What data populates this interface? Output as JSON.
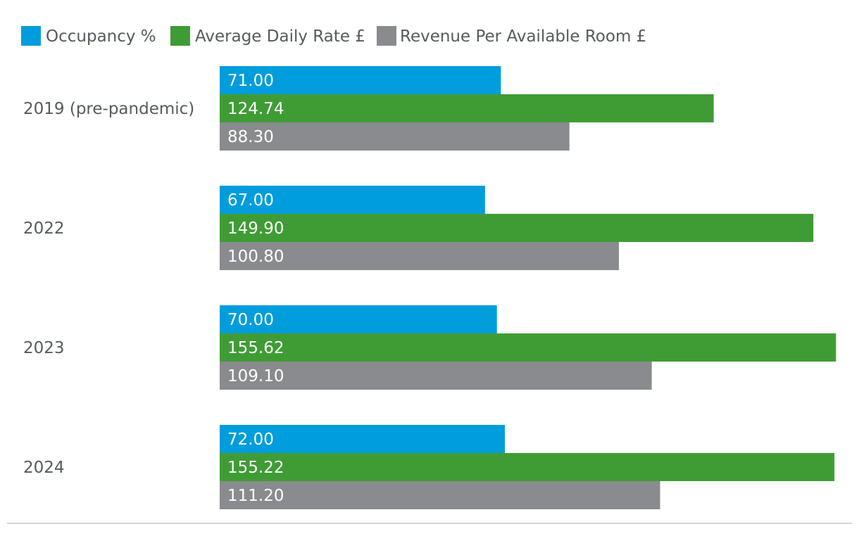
{
  "chart_data": {
    "type": "bar",
    "orientation": "horizontal",
    "legend_position": "top-left",
    "grid": false,
    "categories": [
      "2019 (pre-pandemic)",
      "2022",
      "2023",
      "2024"
    ],
    "series": [
      {
        "name": "Occupancy %",
        "color": "#009ddc",
        "values": [
          71.0,
          67.0,
          70.0,
          72.0
        ],
        "labels": [
          "71.00",
          "67.00",
          "70.00",
          "72.00"
        ]
      },
      {
        "name": "Average Daily Rate £",
        "color": "#3f9c35",
        "values": [
          124.74,
          149.9,
          155.62,
          155.22
        ],
        "labels": [
          "124.74",
          "149.90",
          "155.62",
          "155.22"
        ]
      },
      {
        "name": "Revenue Per Available Room £",
        "color": "#898b8e",
        "values": [
          88.3,
          100.8,
          109.1,
          111.2
        ],
        "labels": [
          "88.30",
          "100.80",
          "109.10",
          "111.20"
        ]
      }
    ],
    "baseline_color": "#c8c8c8"
  }
}
